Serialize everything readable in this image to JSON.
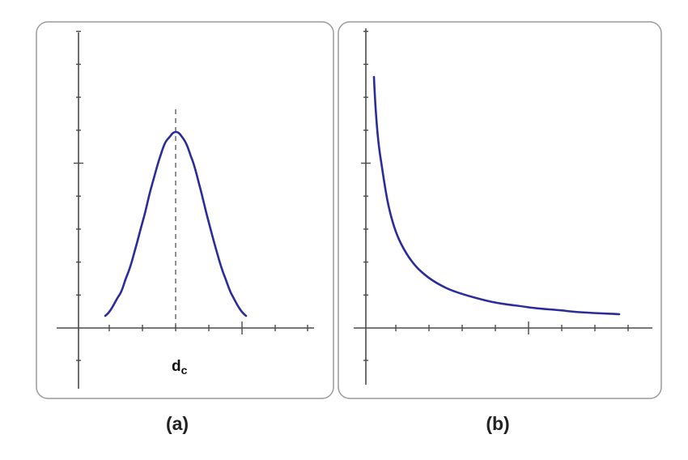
{
  "panels": [
    {
      "caption": "(a)",
      "annotation": {
        "main": "d",
        "sub": "c"
      }
    },
    {
      "caption": "(b)"
    }
  ]
}
